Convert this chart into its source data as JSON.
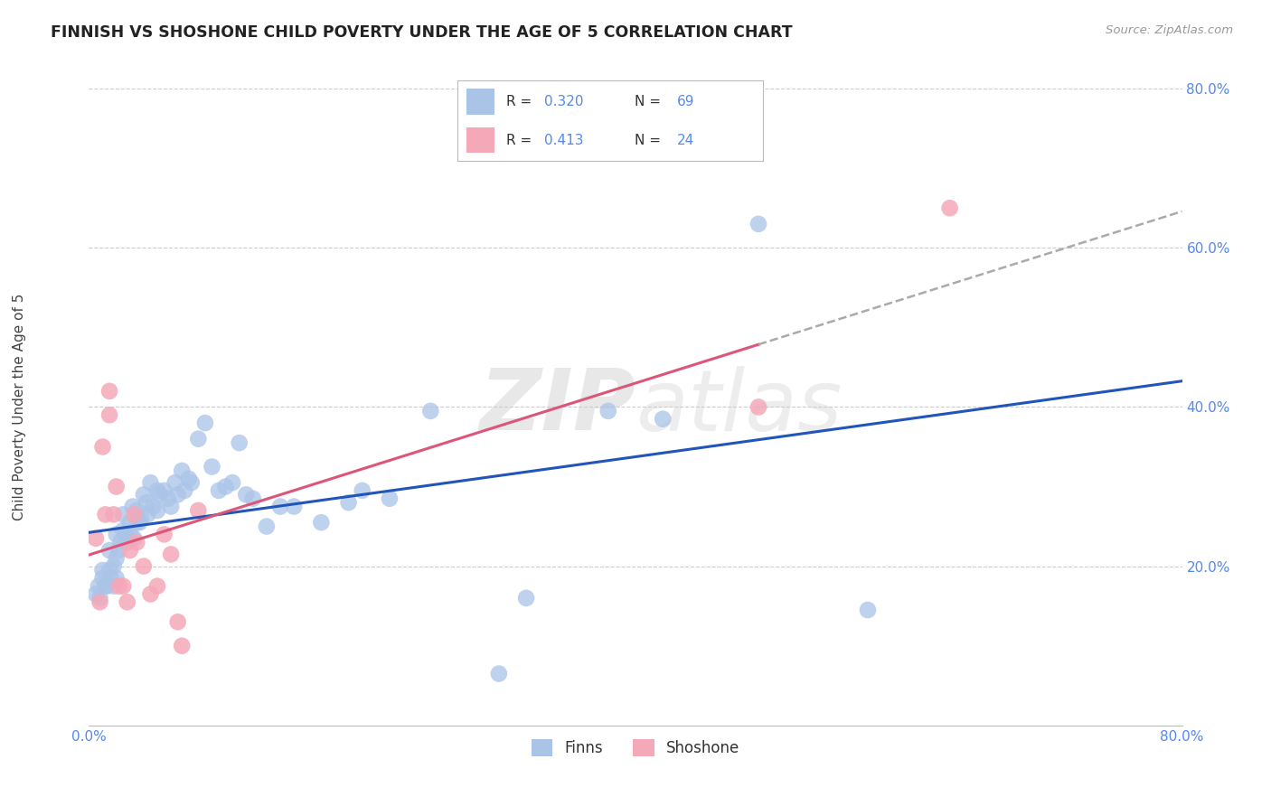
{
  "title": "FINNISH VS SHOSHONE CHILD POVERTY UNDER THE AGE OF 5 CORRELATION CHART",
  "source": "Source: ZipAtlas.com",
  "ylabel": "Child Poverty Under the Age of 5",
  "xlim": [
    0.0,
    0.8
  ],
  "ylim": [
    0.0,
    0.8
  ],
  "xtick_labels": [
    "0.0%",
    "",
    "",
    "",
    "80.0%"
  ],
  "xtick_vals": [
    0.0,
    0.2,
    0.4,
    0.6,
    0.8
  ],
  "ytick_labels": [
    "20.0%",
    "40.0%",
    "60.0%",
    "80.0%"
  ],
  "ytick_vals": [
    0.2,
    0.4,
    0.6,
    0.8
  ],
  "finns_color": "#aac4e8",
  "shoshone_color": "#f5a8b8",
  "finns_line_color": "#2255bb",
  "shoshone_line_color": "#dd5577",
  "finns_R": "0.320",
  "finns_N": "69",
  "shoshone_R": "0.413",
  "shoshone_N": "24",
  "watermark_zip": "ZIP",
  "watermark_atlas": "atlas",
  "background_color": "#ffffff",
  "grid_color": "#cccccc",
  "tick_color": "#5588ee",
  "finns_x": [
    0.005,
    0.007,
    0.008,
    0.01,
    0.01,
    0.012,
    0.013,
    0.015,
    0.015,
    0.016,
    0.018,
    0.018,
    0.02,
    0.02,
    0.02,
    0.022,
    0.023,
    0.025,
    0.025,
    0.027,
    0.028,
    0.03,
    0.03,
    0.032,
    0.033,
    0.035,
    0.035,
    0.037,
    0.038,
    0.04,
    0.042,
    0.043,
    0.045,
    0.047,
    0.05,
    0.05,
    0.052,
    0.055,
    0.058,
    0.06,
    0.063,
    0.065,
    0.068,
    0.07,
    0.073,
    0.075,
    0.08,
    0.085,
    0.09,
    0.095,
    0.1,
    0.105,
    0.11,
    0.115,
    0.12,
    0.13,
    0.14,
    0.15,
    0.17,
    0.19,
    0.2,
    0.22,
    0.25,
    0.3,
    0.32,
    0.38,
    0.42,
    0.49,
    0.57
  ],
  "finns_y": [
    0.165,
    0.175,
    0.16,
    0.195,
    0.185,
    0.175,
    0.175,
    0.22,
    0.195,
    0.185,
    0.2,
    0.175,
    0.24,
    0.21,
    0.185,
    0.22,
    0.23,
    0.265,
    0.245,
    0.24,
    0.23,
    0.255,
    0.24,
    0.275,
    0.235,
    0.27,
    0.255,
    0.255,
    0.26,
    0.29,
    0.28,
    0.265,
    0.305,
    0.275,
    0.295,
    0.27,
    0.29,
    0.295,
    0.285,
    0.275,
    0.305,
    0.29,
    0.32,
    0.295,
    0.31,
    0.305,
    0.36,
    0.38,
    0.325,
    0.295,
    0.3,
    0.305,
    0.355,
    0.29,
    0.285,
    0.25,
    0.275,
    0.275,
    0.255,
    0.28,
    0.295,
    0.285,
    0.395,
    0.065,
    0.16,
    0.395,
    0.385,
    0.63,
    0.145
  ],
  "shoshone_x": [
    0.005,
    0.008,
    0.01,
    0.012,
    0.015,
    0.015,
    0.018,
    0.02,
    0.022,
    0.025,
    0.028,
    0.03,
    0.033,
    0.035,
    0.04,
    0.045,
    0.05,
    0.055,
    0.06,
    0.065,
    0.068,
    0.08,
    0.49,
    0.63
  ],
  "shoshone_y": [
    0.235,
    0.155,
    0.35,
    0.265,
    0.42,
    0.39,
    0.265,
    0.3,
    0.175,
    0.175,
    0.155,
    0.22,
    0.265,
    0.23,
    0.2,
    0.165,
    0.175,
    0.24,
    0.215,
    0.13,
    0.1,
    0.27,
    0.4,
    0.65
  ]
}
